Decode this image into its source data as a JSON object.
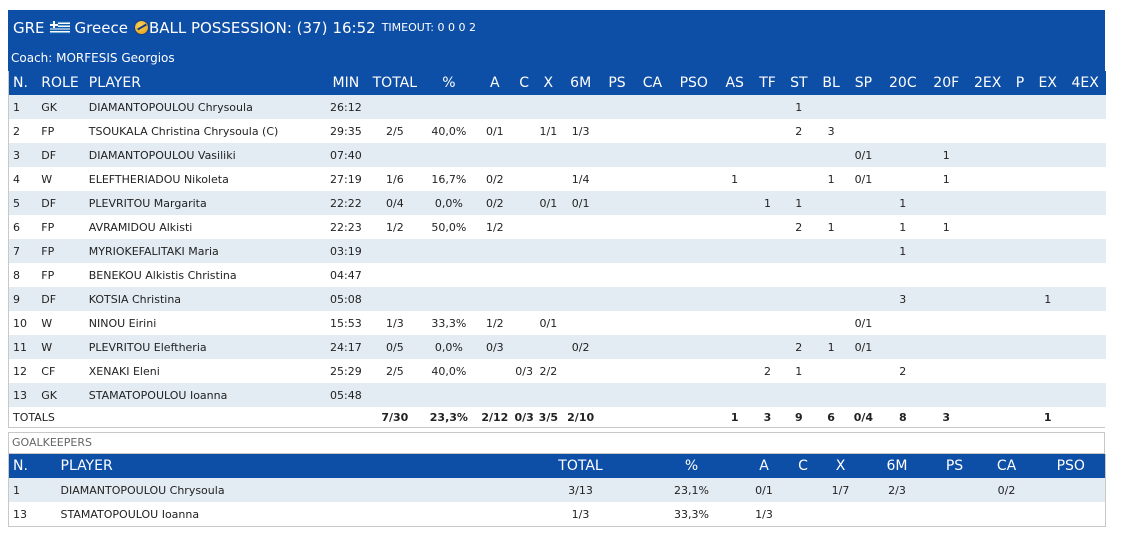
{
  "header": {
    "team_code": "GRE",
    "team_name": "Greece",
    "possession_text": "BALL POSSESSION: (37)",
    "clock": "16:52",
    "timeout_text": "TIMEOUT: 0 0 0 2",
    "coach": "Coach: MORFESIS Georgios"
  },
  "players_table": {
    "columns": [
      "N.",
      "ROLE",
      "PLAYER",
      "MIN",
      "TOTAL",
      "%",
      "A",
      "C",
      "X",
      "6M",
      "PS",
      "CA",
      "PSO",
      "AS",
      "TF",
      "ST",
      "BL",
      "SP",
      "20C",
      "20F",
      "2EX",
      "P",
      "EX",
      "4EX"
    ],
    "rows": [
      [
        "1",
        "GK",
        "DIAMANTOPOULOU Chrysoula",
        "26:12",
        "",
        "",
        "",
        "",
        "",
        "",
        "",
        "",
        "",
        "",
        "",
        "1",
        "",
        "",
        "",
        "",
        "",
        "",
        "",
        ""
      ],
      [
        "2",
        "FP",
        "TSOUKALA Christina Chrysoula (C)",
        "29:35",
        "2/5",
        "40,0%",
        "0/1",
        "",
        "1/1",
        "1/3",
        "",
        "",
        "",
        "",
        "",
        "2",
        "3",
        "",
        "",
        "",
        "",
        "",
        "",
        ""
      ],
      [
        "3",
        "DF",
        "DIAMANTOPOULOU Vasiliki",
        "07:40",
        "",
        "",
        "",
        "",
        "",
        "",
        "",
        "",
        "",
        "",
        "",
        "",
        "",
        "0/1",
        "",
        "1",
        "",
        "",
        "",
        ""
      ],
      [
        "4",
        "W",
        "ELEFTHERIADOU Nikoleta",
        "27:19",
        "1/6",
        "16,7%",
        "0/2",
        "",
        "",
        "1/4",
        "",
        "",
        "",
        "1",
        "",
        "",
        "1",
        "0/1",
        "",
        "1",
        "",
        "",
        "",
        ""
      ],
      [
        "5",
        "DF",
        "PLEVRITOU Margarita",
        "22:22",
        "0/4",
        "0,0%",
        "0/2",
        "",
        "0/1",
        "0/1",
        "",
        "",
        "",
        "",
        "1",
        "1",
        "",
        "",
        "1",
        "",
        "",
        "",
        "",
        ""
      ],
      [
        "6",
        "FP",
        "AVRAMIDOU Alkisti",
        "22:23",
        "1/2",
        "50,0%",
        "1/2",
        "",
        "",
        "",
        "",
        "",
        "",
        "",
        "",
        "2",
        "1",
        "",
        "1",
        "1",
        "",
        "",
        "",
        ""
      ],
      [
        "7",
        "FP",
        "MYRIOKEFALITAKI Maria",
        "03:19",
        "",
        "",
        "",
        "",
        "",
        "",
        "",
        "",
        "",
        "",
        "",
        "",
        "",
        "",
        "1",
        "",
        "",
        "",
        "",
        ""
      ],
      [
        "8",
        "FP",
        "BENEKOU Alkistis Christina",
        "04:47",
        "",
        "",
        "",
        "",
        "",
        "",
        "",
        "",
        "",
        "",
        "",
        "",
        "",
        "",
        "",
        "",
        "",
        "",
        "",
        ""
      ],
      [
        "9",
        "DF",
        "KOTSIA Christina",
        "05:08",
        "",
        "",
        "",
        "",
        "",
        "",
        "",
        "",
        "",
        "",
        "",
        "",
        "",
        "",
        "3",
        "",
        "",
        "",
        "1",
        ""
      ],
      [
        "10",
        "W",
        "NINOU Eirini",
        "15:53",
        "1/3",
        "33,3%",
        "1/2",
        "",
        "0/1",
        "",
        "",
        "",
        "",
        "",
        "",
        "",
        "",
        "0/1",
        "",
        "",
        "",
        "",
        "",
        ""
      ],
      [
        "11",
        "W",
        "PLEVRITOU Eleftheria",
        "24:17",
        "0/5",
        "0,0%",
        "0/3",
        "",
        "",
        "0/2",
        "",
        "",
        "",
        "",
        "",
        "2",
        "1",
        "0/1",
        "",
        "",
        "",
        "",
        "",
        ""
      ],
      [
        "12",
        "CF",
        "XENAKI Eleni",
        "25:29",
        "2/5",
        "40,0%",
        "",
        "0/3",
        "2/2",
        "",
        "",
        "",
        "",
        "",
        "2",
        "1",
        "",
        "",
        "2",
        "",
        "",
        "",
        "",
        ""
      ],
      [
        "13",
        "GK",
        "STAMATOPOULOU Ioanna",
        "05:48",
        "",
        "",
        "",
        "",
        "",
        "",
        "",
        "",
        "",
        "",
        "",
        "",
        "",
        "",
        "",
        "",
        "",
        "",
        "",
        ""
      ]
    ],
    "totals": [
      "TOTALS",
      "",
      "",
      "",
      "7/30",
      "23,3%",
      "2/12",
      "0/3",
      "3/5",
      "2/10",
      "",
      "",
      "",
      "1",
      "3",
      "9",
      "6",
      "0/4",
      "8",
      "3",
      "",
      "",
      "1",
      ""
    ]
  },
  "goalkeepers": {
    "caption": "GOALKEEPERS",
    "columns": [
      "N.",
      "PLAYER",
      "TOTAL",
      "%",
      "A",
      "C",
      "X",
      "6M",
      "PS",
      "CA",
      "PSO"
    ],
    "rows": [
      [
        "1",
        "DIAMANTOPOULOU Chrysoula",
        "3/13",
        "23,1%",
        "0/1",
        "",
        "1/7",
        "2/3",
        "",
        "0/2",
        ""
      ],
      [
        "13",
        "STAMATOPOULOU Ioanna",
        "1/3",
        "33,3%",
        "1/3",
        "",
        "",
        "",
        "",
        "",
        ""
      ]
    ]
  },
  "colors": {
    "header_bg": "#0d4ea6",
    "row_alt": "#e4ecf3"
  }
}
